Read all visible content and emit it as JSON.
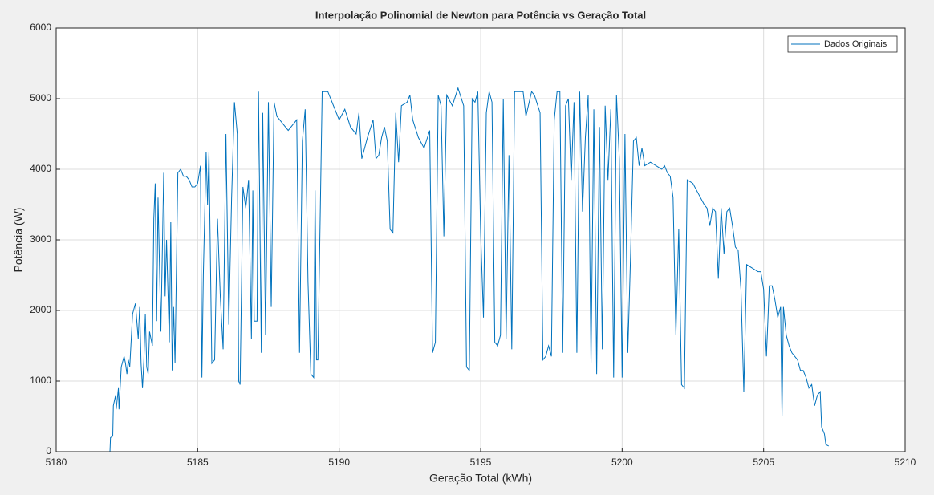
{
  "chart_data": {
    "type": "line",
    "title": "Interpolação Polinomial de Newton para Potência vs Geração Total",
    "xlabel": "Geração Total (kWh)",
    "ylabel": "Potência (W)",
    "xlim": [
      5180,
      5210
    ],
    "xticks": [
      5180,
      5185,
      5190,
      5195,
      5200,
      5205,
      5210
    ],
    "ylim": [
      0,
      6000
    ],
    "yticks": [
      0,
      1000,
      2000,
      3000,
      4000,
      5000,
      6000
    ],
    "grid": true,
    "legend": "top-right",
    "x": [
      5181.9,
      5181.92,
      5182.0,
      5182.02,
      5182.1,
      5182.12,
      5182.2,
      5182.22,
      5182.3,
      5182.4,
      5182.45,
      5182.5,
      5182.55,
      5182.6,
      5182.7,
      5182.8,
      5182.85,
      5182.9,
      5182.95,
      5183.0,
      5183.05,
      5183.1,
      5183.15,
      5183.2,
      5183.25,
      5183.3,
      5183.4,
      5183.45,
      5183.5,
      5183.55,
      5183.6,
      5183.7,
      5183.75,
      5183.8,
      5183.85,
      5183.9,
      5184.0,
      5184.05,
      5184.1,
      5184.15,
      5184.2,
      5184.3,
      5184.4,
      5184.5,
      5184.6,
      5184.7,
      5184.8,
      5184.9,
      5185.0,
      5185.1,
      5185.15,
      5185.2,
      5185.3,
      5185.35,
      5185.4,
      5185.5,
      5185.6,
      5185.7,
      5185.8,
      5185.9,
      5186.0,
      5186.1,
      5186.2,
      5186.3,
      5186.4,
      5186.45,
      5186.5,
      5186.6,
      5186.7,
      5186.8,
      5186.9,
      5186.95,
      5187.0,
      5187.1,
      5187.15,
      5187.25,
      5187.3,
      5187.4,
      5187.5,
      5187.6,
      5187.7,
      5187.8,
      5188.0,
      5188.2,
      5188.4,
      5188.5,
      5188.6,
      5188.7,
      5188.8,
      5188.9,
      5189.0,
      5189.1,
      5189.15,
      5189.2,
      5189.25,
      5189.4,
      5189.6,
      5189.8,
      5190.0,
      5190.2,
      5190.4,
      5190.6,
      5190.7,
      5190.8,
      5191.0,
      5191.2,
      5191.3,
      5191.4,
      5191.5,
      5191.6,
      5191.7,
      5191.8,
      5191.9,
      5192.0,
      5192.1,
      5192.2,
      5192.4,
      5192.5,
      5192.6,
      5192.8,
      5193.0,
      5193.2,
      5193.3,
      5193.4,
      5193.5,
      5193.6,
      5193.7,
      5193.8,
      5194.0,
      5194.2,
      5194.4,
      5194.5,
      5194.6,
      5194.7,
      5194.8,
      5194.9,
      5195.0,
      5195.1,
      5195.2,
      5195.3,
      5195.4,
      5195.5,
      5195.6,
      5195.7,
      5195.8,
      5195.9,
      5196.0,
      5196.1,
      5196.2,
      5196.5,
      5196.6,
      5196.8,
      5196.9,
      5197.1,
      5197.2,
      5197.3,
      5197.4,
      5197.5,
      5197.6,
      5197.7,
      5197.8,
      5197.9,
      5198.0,
      5198.1,
      5198.2,
      5198.3,
      5198.4,
      5198.5,
      5198.6,
      5198.7,
      5198.8,
      5198.9,
      5199.0,
      5199.1,
      5199.2,
      5199.3,
      5199.4,
      5199.5,
      5199.6,
      5199.7,
      5199.8,
      5199.9,
      5200.0,
      5200.1,
      5200.2,
      5200.3,
      5200.4,
      5200.5,
      5200.6,
      5200.7,
      5200.8,
      5201.0,
      5201.2,
      5201.4,
      5201.5,
      5201.6,
      5201.7,
      5201.8,
      5201.9,
      5202.0,
      5202.1,
      5202.2,
      5202.3,
      5202.5,
      5202.7,
      5202.9,
      5203.0,
      5203.1,
      5203.2,
      5203.3,
      5203.4,
      5203.5,
      5203.6,
      5203.7,
      5203.8,
      5203.9,
      5204.0,
      5204.1,
      5204.2,
      5204.3,
      5204.4,
      5204.6,
      5204.8,
      5204.9,
      5205.0,
      5205.1,
      5205.2,
      5205.3,
      5205.4,
      5205.5,
      5205.6,
      5205.65,
      5205.7,
      5205.8,
      5205.9,
      5206.0,
      5206.2,
      5206.3,
      5206.4,
      5206.5,
      5206.6,
      5206.7,
      5206.8,
      5206.9,
      5207.0,
      5207.05,
      5207.15,
      5207.2,
      5207.3
    ],
    "series": [
      {
        "name": "Dados Originais",
        "color": "#0072bd",
        "values": [
          0,
          200,
          220,
          650,
          800,
          600,
          900,
          600,
          1200,
          1350,
          1250,
          1100,
          1300,
          1200,
          1950,
          2100,
          1850,
          1600,
          2050,
          1250,
          900,
          1300,
          1950,
          1200,
          1100,
          1700,
          1500,
          3300,
          3800,
          1850,
          3600,
          1700,
          2800,
          3950,
          2200,
          3000,
          1550,
          3250,
          1150,
          2050,
          1250,
          3950,
          4000,
          3900,
          3900,
          3850,
          3750,
          3750,
          3800,
          4050,
          1050,
          2500,
          4250,
          3500,
          4250,
          1250,
          1300,
          3300,
          2200,
          1450,
          4500,
          1800,
          3600,
          4950,
          4500,
          1000,
          950,
          3750,
          3450,
          3850,
          1600,
          3700,
          1850,
          1850,
          5100,
          1400,
          4800,
          1650,
          4950,
          2050,
          4950,
          4750,
          4650,
          4550,
          4650,
          4700,
          1400,
          4400,
          4850,
          2400,
          1100,
          1050,
          3700,
          1300,
          1300,
          5100,
          5100,
          4900,
          4700,
          4850,
          4600,
          4500,
          4800,
          4150,
          4450,
          4700,
          4150,
          4200,
          4450,
          4600,
          4400,
          3150,
          3100,
          4800,
          4100,
          4900,
          4950,
          5050,
          4700,
          4450,
          4300,
          4550,
          1400,
          1550,
          5050,
          4900,
          3050,
          5050,
          4900,
          5150,
          4900,
          1200,
          1150,
          5000,
          4950,
          5100,
          3100,
          1900,
          4800,
          5100,
          4950,
          1550,
          1500,
          1650,
          5000,
          1600,
          4200,
          1450,
          5100,
          5100,
          4750,
          5100,
          5050,
          4800,
          1300,
          1350,
          1500,
          1350,
          4700,
          5100,
          5100,
          1400,
          4900,
          5000,
          3850,
          4950,
          1400,
          5100,
          3400,
          4450,
          5050,
          1250,
          4850,
          1100,
          4600,
          1450,
          4900,
          3850,
          4850,
          1050,
          5050,
          4150,
          1050,
          4500,
          1400,
          2800,
          4400,
          4450,
          4050,
          4300,
          4050,
          4100,
          4050,
          4000,
          4050,
          3950,
          3900,
          3600,
          1650,
          3150,
          950,
          900,
          3850,
          3800,
          3650,
          3500,
          3450,
          3200,
          3450,
          3400,
          2450,
          3450,
          2800,
          3400,
          3450,
          3200,
          2900,
          2850,
          2300,
          850,
          2650,
          2600,
          2550,
          2550,
          2300,
          1350,
          2350,
          2350,
          2150,
          1900,
          2050,
          500,
          2050,
          1650,
          1500,
          1400,
          1300,
          1150,
          1150,
          1050,
          900,
          950,
          650,
          800,
          850,
          350,
          250,
          100,
          80
        ]
      }
    ]
  }
}
